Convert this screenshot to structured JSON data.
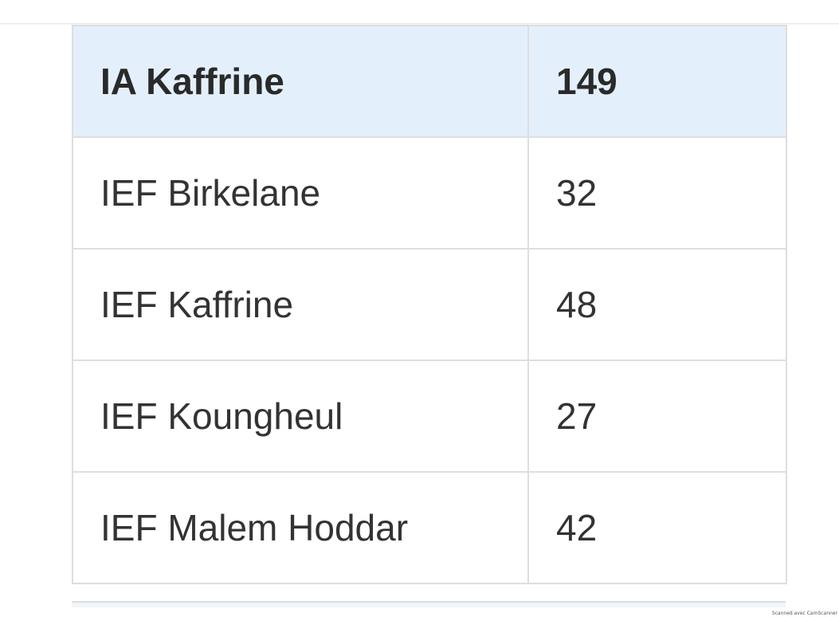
{
  "table": {
    "header": {
      "name": "IA Kaffrine",
      "count": "149"
    },
    "rows": [
      {
        "name": "IEF Birkelane",
        "count": "32"
      },
      {
        "name": "IEF Kaffrine",
        "count": "48"
      },
      {
        "name": "IEF Koungheul",
        "count": "27"
      },
      {
        "name": "IEF Malem Hoddar",
        "count": "42"
      }
    ]
  },
  "watermark": "Scanned avec CamScanner"
}
